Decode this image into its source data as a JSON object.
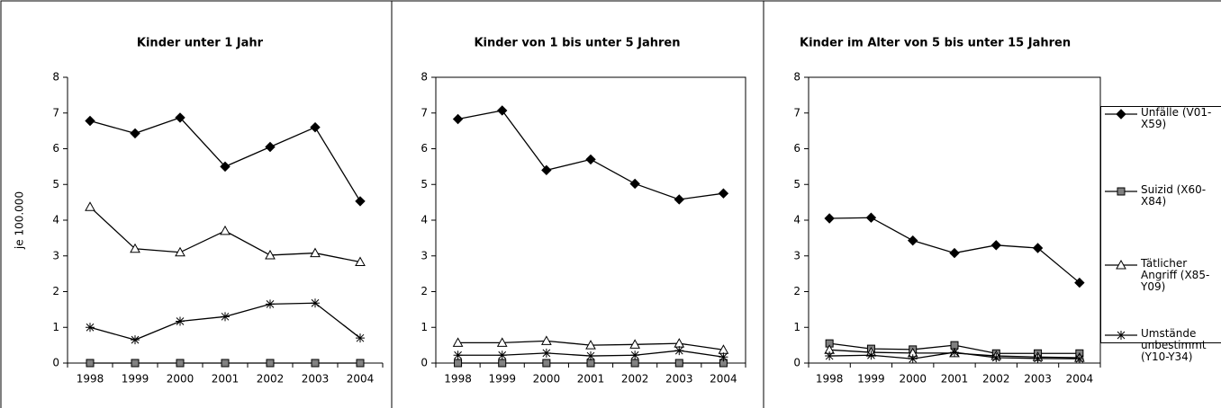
{
  "chart_data": [
    {
      "type": "line",
      "title": "Kinder unter 1 Jahr",
      "y_label": "je 100.000",
      "categories": [
        "1998",
        "1999",
        "2000",
        "2001",
        "2002",
        "2003",
        "2004"
      ],
      "ylim": [
        0,
        8
      ],
      "yticks": [
        0,
        1,
        2,
        3,
        4,
        5,
        6,
        7,
        8
      ],
      "plot_border": false,
      "series": [
        {
          "name": "Unfälle (V01-X59)",
          "color": "#000000",
          "marker": "diamond",
          "marker_fill": "#000000",
          "values": [
            6.78,
            6.43,
            6.87,
            5.5,
            6.05,
            6.6,
            4.53
          ]
        },
        {
          "name": "Suizid (X60-X84)",
          "color": "#000000",
          "marker": "square",
          "marker_fill": "#808080",
          "values": [
            0,
            0,
            0,
            0,
            0,
            0,
            0
          ]
        },
        {
          "name": "Tätlicher Angriff (X85-Y09)",
          "color": "#000000",
          "marker": "triangle",
          "marker_fill": "#ffffff",
          "values": [
            4.37,
            3.2,
            3.1,
            3.7,
            3.02,
            3.08,
            2.83
          ]
        },
        {
          "name": "Umstände unbestimmt (Y10-Y34)",
          "color": "#000000",
          "marker": "star",
          "marker_fill": "#000000",
          "values": [
            1.0,
            0.65,
            1.17,
            1.3,
            1.65,
            1.68,
            0.7
          ]
        }
      ]
    },
    {
      "type": "line",
      "title": "Kinder von 1 bis unter 5 Jahren",
      "categories": [
        "1998",
        "1999",
        "2000",
        "2001",
        "2002",
        "2003",
        "2004"
      ],
      "ylim": [
        0,
        8
      ],
      "yticks": [
        0,
        1,
        2,
        3,
        4,
        5,
        6,
        7,
        8
      ],
      "plot_border": true,
      "series": [
        {
          "name": "Unfälle (V01-X59)",
          "color": "#000000",
          "marker": "diamond",
          "marker_fill": "#000000",
          "values": [
            6.83,
            7.07,
            5.4,
            5.7,
            5.02,
            4.58,
            4.75
          ]
        },
        {
          "name": "Suizid (X60-X84)",
          "color": "#000000",
          "marker": "square",
          "marker_fill": "#808080",
          "values": [
            0,
            0,
            0,
            0,
            0,
            0,
            0
          ]
        },
        {
          "name": "Tätlicher Angriff (X85-Y09)",
          "color": "#000000",
          "marker": "triangle",
          "marker_fill": "#ffffff",
          "values": [
            0.57,
            0.57,
            0.62,
            0.5,
            0.52,
            0.55,
            0.37
          ]
        },
        {
          "name": "Umstände unbestimmt (Y10-Y34)",
          "color": "#000000",
          "marker": "star",
          "marker_fill": "#000000",
          "values": [
            0.22,
            0.22,
            0.28,
            0.2,
            0.22,
            0.35,
            0.17
          ]
        }
      ]
    },
    {
      "type": "line",
      "title": "Kinder im Alter von 5 bis unter 15 Jahren",
      "categories": [
        "1998",
        "1999",
        "2000",
        "2001",
        "2002",
        "2003",
        "2004"
      ],
      "ylim": [
        0,
        8
      ],
      "yticks": [
        0,
        1,
        2,
        3,
        4,
        5,
        6,
        7,
        8
      ],
      "plot_border": true,
      "legend": "right",
      "series": [
        {
          "name": "Unfälle (V01-X59)",
          "color": "#000000",
          "marker": "diamond",
          "marker_fill": "#000000",
          "values": [
            4.05,
            4.07,
            3.43,
            3.08,
            3.3,
            3.22,
            2.25
          ]
        },
        {
          "name": "Suizid (X60-X84)",
          "color": "#000000",
          "marker": "square",
          "marker_fill": "#808080",
          "values": [
            0.55,
            0.4,
            0.38,
            0.5,
            0.27,
            0.27,
            0.27
          ]
        },
        {
          "name": "Tätlicher Angriff (X85-Y09)",
          "color": "#000000",
          "marker": "triangle",
          "marker_fill": "#ffffff",
          "values": [
            0.37,
            0.3,
            0.28,
            0.28,
            0.2,
            0.17,
            0.15
          ]
        },
        {
          "name": "Umstände unbestimmt (Y10-Y34)",
          "color": "#000000",
          "marker": "star",
          "marker_fill": "#000000",
          "values": [
            0.2,
            0.22,
            0.12,
            0.3,
            0.15,
            0.13,
            0.12
          ]
        }
      ]
    }
  ]
}
